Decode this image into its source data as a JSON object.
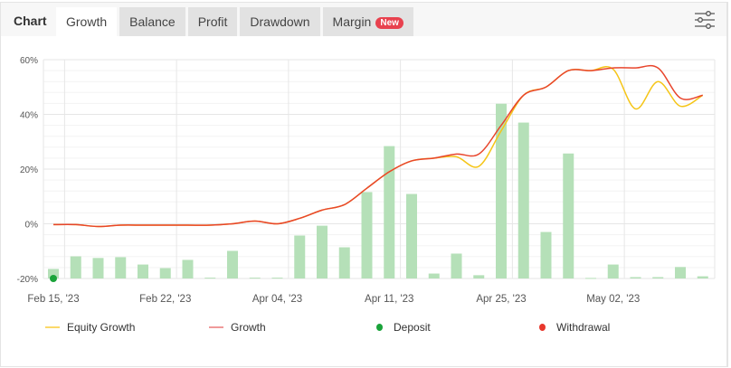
{
  "header": {
    "title": "Chart",
    "tabs": [
      {
        "label": "Growth",
        "active": true
      },
      {
        "label": "Balance",
        "active": false
      },
      {
        "label": "Profit",
        "active": false
      },
      {
        "label": "Drawdown",
        "active": false
      },
      {
        "label": "Margin",
        "active": false,
        "badge": "New"
      }
    ],
    "filter_icon": "sliders-icon"
  },
  "colors": {
    "equity": "#f5c518",
    "growth": "#e8452c",
    "bars": "#b5e0b8",
    "deposit": "#1aa33a",
    "withdrawal": "#e8372c",
    "badge": "#e8414e"
  },
  "chart_data": {
    "type": "line",
    "ylim": [
      -20,
      60
    ],
    "yticks": [
      "60%",
      "40%",
      "20%",
      "0%",
      "-20%"
    ],
    "ytick_values": [
      60,
      40,
      20,
      0,
      -20
    ],
    "xtick_labels": [
      "Feb 15, '23",
      "Feb 22, '23",
      "Apr 04, '23",
      "Apr 11, '23",
      "Apr 25, '23",
      "May 02, '23"
    ],
    "xtick_index": [
      0,
      5,
      10,
      15,
      20,
      25
    ],
    "grid": true,
    "legend_placement": "bottom",
    "bars": [
      -16.5,
      -11.9,
      -12.5,
      -12.2,
      -14.9,
      -16.2,
      -13.2,
      -19.7,
      -9.9,
      -19.7,
      -19.7,
      -4.3,
      -0.7,
      -8.6,
      11.6,
      28.4,
      10.9,
      -18.2,
      -10.9,
      -18.8,
      43.9,
      37.0,
      -3.0,
      25.7,
      -19.8,
      -14.9,
      -19.5,
      -19.5,
      -15.8,
      -19.2
    ],
    "series": [
      {
        "name": "Equity Growth",
        "values": [
          -0.3,
          -0.3,
          -1,
          -0.5,
          -0.5,
          -0.5,
          -0.5,
          -0.5,
          0,
          1,
          0,
          2,
          5,
          7,
          13,
          19,
          23,
          24,
          24.5,
          21,
          34,
          47,
          50,
          56,
          56,
          56.5,
          42,
          52,
          43,
          47
        ]
      },
      {
        "name": "Growth",
        "values": [
          -0.3,
          -0.3,
          -1,
          -0.5,
          -0.5,
          -0.5,
          -0.5,
          -0.5,
          0,
          1,
          0,
          2,
          5,
          7,
          13,
          19,
          23,
          24,
          25.5,
          25.5,
          36,
          47,
          50,
          56,
          56,
          57,
          57,
          57,
          46,
          47
        ]
      }
    ],
    "deposits": [
      {
        "index": 0,
        "value": -20
      }
    ],
    "legend": [
      {
        "label": "Equity Growth",
        "kind": "line"
      },
      {
        "label": "Growth",
        "kind": "line"
      },
      {
        "label": "Deposit",
        "kind": "dot"
      },
      {
        "label": "Withdrawal",
        "kind": "dot"
      }
    ]
  }
}
